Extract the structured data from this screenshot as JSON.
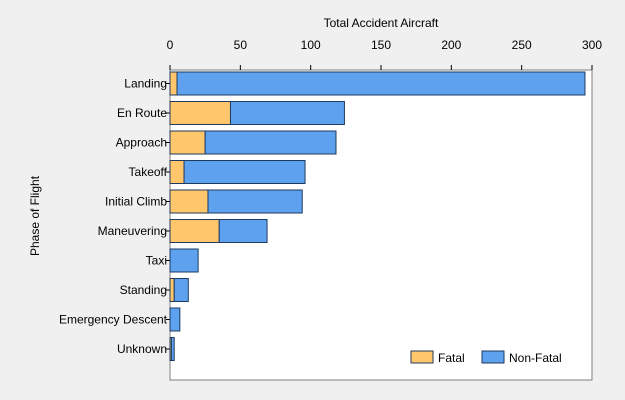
{
  "chart_data": {
    "type": "bar",
    "orientation": "horizontal",
    "stacked": true,
    "title": "",
    "xlabel": "Total Accident Aircraft",
    "ylabel": "Phase of Flight",
    "xlim": [
      0,
      300
    ],
    "x_ticks": [
      0,
      50,
      100,
      150,
      200,
      250,
      300
    ],
    "grid": false,
    "legend_position": "bottom-right",
    "categories": [
      "Landing",
      "En Route",
      "Approach",
      "Takeoff",
      "Initial Climb",
      "Maneuvering",
      "Taxi",
      "Standing",
      "Emergency Descent",
      "Unknown"
    ],
    "series": [
      {
        "name": "Fatal",
        "color": "#ffc66b",
        "values": [
          5,
          43,
          25,
          10,
          27,
          35,
          0,
          3,
          0,
          1
        ]
      },
      {
        "name": "Non-Fatal",
        "color": "#5ea2ef",
        "values": [
          290,
          81,
          93,
          86,
          67,
          34,
          20,
          10,
          7,
          2
        ]
      }
    ]
  }
}
